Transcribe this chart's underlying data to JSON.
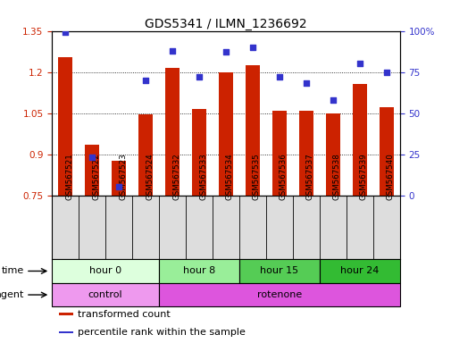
{
  "title": "GDS5341 / ILMN_1236692",
  "samples": [
    "GSM567521",
    "GSM567522",
    "GSM567523",
    "GSM567524",
    "GSM567532",
    "GSM567533",
    "GSM567534",
    "GSM567535",
    "GSM567536",
    "GSM567537",
    "GSM567538",
    "GSM567539",
    "GSM567540"
  ],
  "bar_values": [
    1.255,
    0.935,
    0.875,
    1.045,
    1.215,
    1.065,
    1.2,
    1.225,
    1.06,
    1.06,
    1.05,
    1.155,
    1.07
  ],
  "scatter_values": [
    99,
    23,
    5,
    70,
    88,
    72,
    87,
    90,
    72,
    68,
    58,
    80,
    75
  ],
  "bar_bottom": 0.75,
  "ylim_left": [
    0.75,
    1.35
  ],
  "ylim_right": [
    0,
    100
  ],
  "yticks_left": [
    0.75,
    0.9,
    1.05,
    1.2,
    1.35
  ],
  "yticks_right": [
    0,
    25,
    50,
    75,
    100
  ],
  "bar_color": "#cc2200",
  "scatter_color": "#3333cc",
  "time_groups": [
    {
      "label": "hour 0",
      "start": 0,
      "end": 4,
      "color": "#ddffdd"
    },
    {
      "label": "hour 8",
      "start": 4,
      "end": 7,
      "color": "#99ee99"
    },
    {
      "label": "hour 15",
      "start": 7,
      "end": 10,
      "color": "#55cc55"
    },
    {
      "label": "hour 24",
      "start": 10,
      "end": 13,
      "color": "#33bb33"
    }
  ],
  "agent_groups": [
    {
      "label": "control",
      "start": 0,
      "end": 4,
      "color": "#ee99ee"
    },
    {
      "label": "rotenone",
      "start": 4,
      "end": 13,
      "color": "#dd55dd"
    }
  ],
  "time_label": "time",
  "agent_label": "agent",
  "legend_items": [
    {
      "label": "transformed count",
      "color": "#cc2200"
    },
    {
      "label": "percentile rank within the sample",
      "color": "#3333cc"
    }
  ],
  "sample_bg_color": "#dddddd",
  "grid_linestyle": "dotted"
}
